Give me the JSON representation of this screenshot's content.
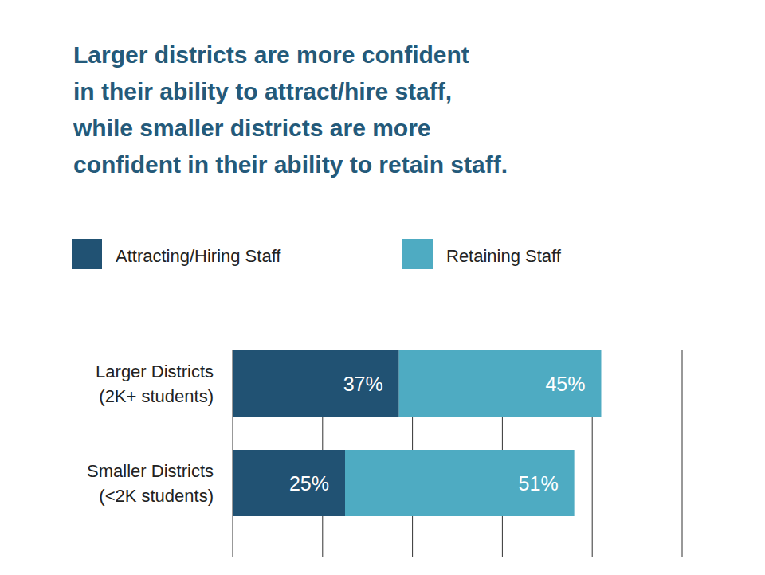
{
  "chart_data": {
    "type": "bar",
    "title": "Larger districts are more confident\nin their ability to attract/hire staff,\nwhile smaller districts are more\nconfident in their ability to retain staff.",
    "categories": [
      "Larger Districts\n(2K+ students)",
      "Smaller Districts\n(<2K students)"
    ],
    "series": [
      {
        "name": "Attracting/Hiring Staff",
        "color": "#215273",
        "values": [
          37,
          25
        ],
        "value_labels": [
          "37%",
          "25%"
        ]
      },
      {
        "name": "Retaining Staff",
        "color": "#4eabc2",
        "values": [
          45,
          51
        ],
        "value_labels": [
          "45%",
          "51%"
        ]
      }
    ],
    "orientation": "horizontal",
    "stacked": true,
    "data_labels": true,
    "grid": true,
    "tick_labels": false,
    "legend": "top",
    "xlim": [
      0,
      100
    ],
    "xticks": [
      0,
      20,
      40,
      60,
      80,
      100
    ]
  }
}
